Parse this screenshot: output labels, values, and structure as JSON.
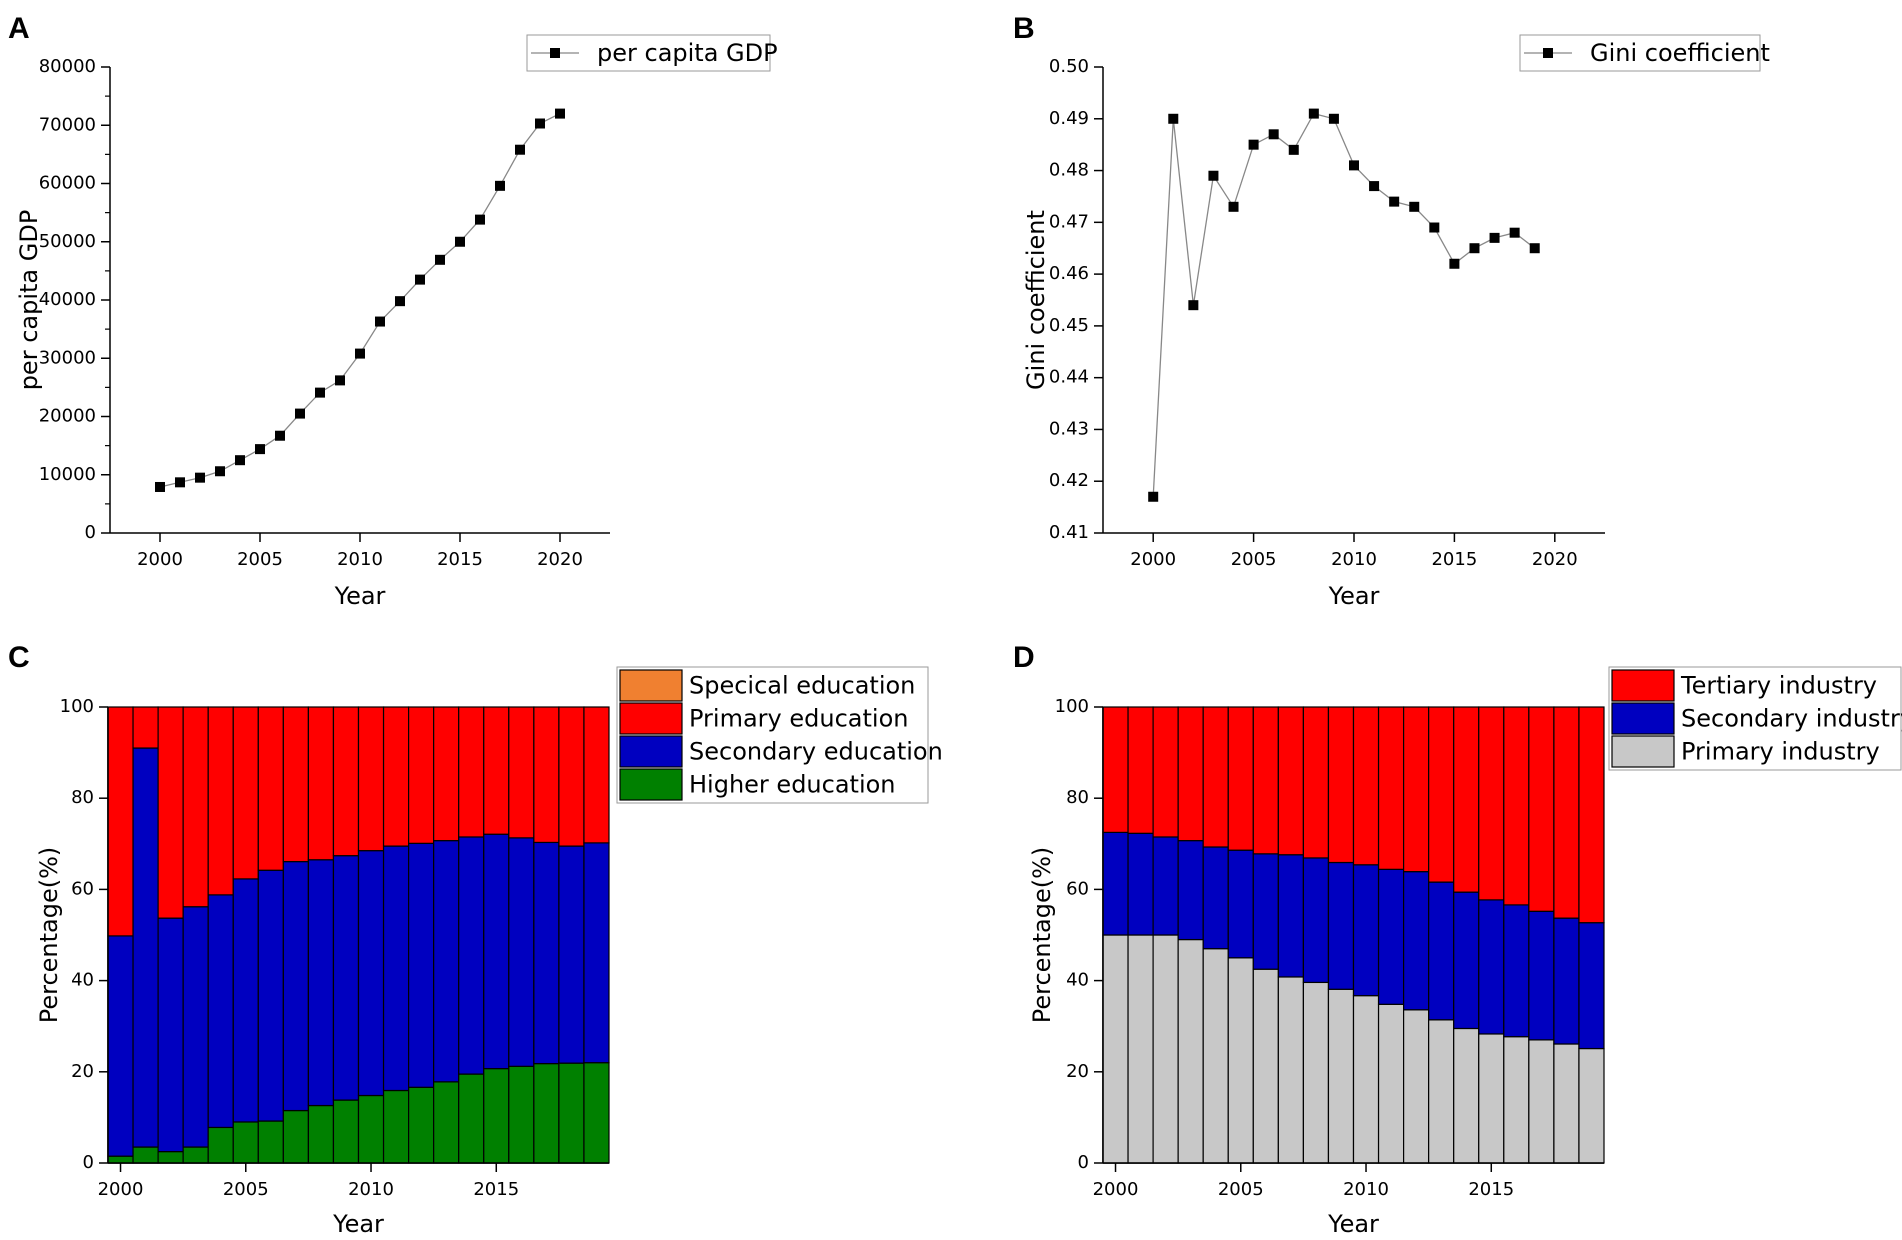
{
  "chart_data": [
    {
      "panel": "A",
      "type": "line",
      "title": "",
      "xlabel": "Year",
      "ylabel": "per capita GDP",
      "xlim": [
        1997.5,
        2022.5
      ],
      "ylim": [
        0,
        80000
      ],
      "xticks": [
        2000,
        2005,
        2010,
        2015,
        2020
      ],
      "yticks": [
        0,
        10000,
        20000,
        30000,
        40000,
        50000,
        60000,
        70000,
        80000
      ],
      "legend": [
        "per capita GDP"
      ],
      "legend_position": "top-right",
      "series": [
        {
          "name": "per capita GDP",
          "x": [
            2000,
            2001,
            2002,
            2003,
            2004,
            2005,
            2006,
            2007,
            2008,
            2009,
            2010,
            2011,
            2012,
            2013,
            2014,
            2015,
            2016,
            2017,
            2018,
            2019,
            2020
          ],
          "values": [
            7900,
            8700,
            9500,
            10600,
            12500,
            14400,
            16700,
            20500,
            24100,
            26200,
            30800,
            36300,
            39800,
            43500,
            46900,
            50000,
            53800,
            59600,
            65800,
            70300,
            72000
          ]
        }
      ]
    },
    {
      "panel": "B",
      "type": "line",
      "title": "",
      "xlabel": "Year",
      "ylabel": "Gini coefficient",
      "xlim": [
        1997.5,
        2022.5
      ],
      "ylim": [
        0.41,
        0.5
      ],
      "xticks": [
        2000,
        2005,
        2010,
        2015,
        2020
      ],
      "yticks": [
        "0.41",
        "0.42",
        "0.43",
        "0.44",
        "0.45",
        "0.46",
        "0.47",
        "0.48",
        "0.49",
        "0.50"
      ],
      "legend": [
        "Gini coefficient"
      ],
      "legend_position": "top-right",
      "series": [
        {
          "name": "Gini coefficient",
          "x": [
            2000,
            2001,
            2002,
            2003,
            2004,
            2005,
            2006,
            2007,
            2008,
            2009,
            2010,
            2011,
            2012,
            2013,
            2014,
            2015,
            2016,
            2017,
            2018,
            2019
          ],
          "values": [
            0.417,
            0.49,
            0.454,
            0.479,
            0.473,
            0.485,
            0.487,
            0.484,
            0.491,
            0.49,
            0.481,
            0.477,
            0.474,
            0.473,
            0.469,
            0.462,
            0.465,
            0.467,
            0.468,
            0.465
          ]
        }
      ]
    },
    {
      "panel": "C",
      "type": "bar",
      "stacked": true,
      "title": "",
      "xlabel": "Year",
      "ylabel": "Percentage(%)",
      "xlim": [
        1999.5,
        2019.5
      ],
      "ylim": [
        0,
        100
      ],
      "xticks": [
        2000,
        2005,
        2010,
        2015
      ],
      "yticks": [
        0,
        20,
        40,
        60,
        80,
        100
      ],
      "legend_position": "top-right",
      "categories": [
        2000,
        2001,
        2002,
        2003,
        2004,
        2005,
        2006,
        2007,
        2008,
        2009,
        2010,
        2011,
        2012,
        2013,
        2014,
        2015,
        2016,
        2017,
        2018,
        2019
      ],
      "series": [
        {
          "name": "Higher education",
          "color": "#008000",
          "values": [
            1.5,
            3.5,
            2.5,
            3.5,
            7.8,
            9.0,
            9.2,
            11.5,
            12.6,
            13.8,
            14.8,
            15.9,
            16.6,
            17.8,
            19.5,
            20.7,
            21.2,
            21.8,
            21.9,
            22.0
          ]
        },
        {
          "name": "Secondary education",
          "color": "#0000C0",
          "values": [
            48.3,
            87.5,
            51.2,
            52.7,
            51.0,
            53.3,
            55.0,
            54.6,
            53.9,
            53.6,
            53.7,
            53.6,
            53.5,
            52.9,
            52.0,
            51.4,
            50.1,
            48.5,
            47.6,
            48.2
          ]
        },
        {
          "name": "Primary education",
          "color": "#FF0000",
          "values": [
            50.2,
            9.0,
            46.3,
            43.8,
            41.2,
            37.7,
            35.8,
            33.9,
            33.5,
            32.6,
            31.5,
            30.5,
            29.9,
            29.3,
            28.5,
            27.9,
            28.7,
            29.7,
            30.5,
            29.8
          ]
        },
        {
          "name": "Specical education",
          "color": "#F08030",
          "values": [
            0,
            0,
            0,
            0,
            0,
            0,
            0,
            0,
            0,
            0,
            0,
            0,
            0,
            0,
            0,
            0,
            0,
            0,
            0,
            0
          ]
        }
      ],
      "legend": [
        "Specical education",
        "Primary education",
        "Secondary education",
        "Higher education"
      ]
    },
    {
      "panel": "D",
      "type": "bar",
      "stacked": true,
      "title": "",
      "xlabel": "Year",
      "ylabel": "Percentage(%)",
      "xlim": [
        1999.5,
        2019.5
      ],
      "ylim": [
        0,
        100
      ],
      "xticks": [
        2000,
        2005,
        2010,
        2015
      ],
      "yticks": [
        0,
        20,
        40,
        60,
        80,
        100
      ],
      "legend_position": "top-right",
      "categories": [
        2000,
        2001,
        2002,
        2003,
        2004,
        2005,
        2006,
        2007,
        2008,
        2009,
        2010,
        2011,
        2012,
        2013,
        2014,
        2015,
        2016,
        2017,
        2018,
        2019
      ],
      "series": [
        {
          "name": "Primary industry",
          "color": "#C8C8C8",
          "values": [
            50.0,
            50.0,
            50.0,
            49.0,
            47.0,
            45.0,
            42.5,
            40.8,
            39.6,
            38.1,
            36.7,
            34.8,
            33.6,
            31.4,
            29.5,
            28.3,
            27.7,
            27.0,
            26.1,
            25.1
          ]
        },
        {
          "name": "Secondary industry",
          "color": "#0000C0",
          "values": [
            22.5,
            22.3,
            21.5,
            21.7,
            22.3,
            23.6,
            25.3,
            26.8,
            27.3,
            27.8,
            28.7,
            29.6,
            30.3,
            30.2,
            29.9,
            29.4,
            28.9,
            28.2,
            27.6,
            27.6
          ]
        },
        {
          "name": "Tertiary industry",
          "color": "#FF0000",
          "values": [
            27.5,
            27.7,
            28.5,
            29.3,
            30.7,
            31.4,
            32.2,
            32.4,
            33.1,
            34.1,
            34.6,
            35.6,
            36.1,
            38.4,
            40.6,
            42.3,
            43.4,
            44.8,
            46.3,
            47.3
          ]
        }
      ],
      "legend": [
        "Tertiary industry",
        "Secondary industry",
        "Primary industry"
      ]
    }
  ],
  "colors": {
    "line": "#888888",
    "marker": "#000000",
    "axis": "#000000"
  }
}
